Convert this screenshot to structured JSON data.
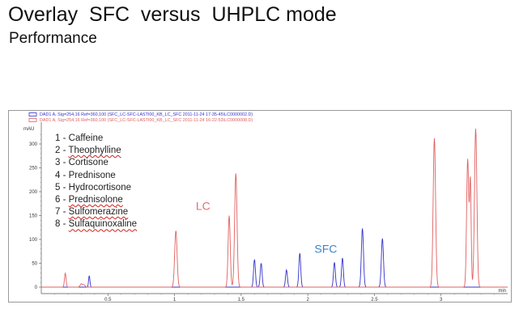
{
  "slide": {
    "title": "Overlay  SFC  versus  UHPLC mode",
    "subtitle": "Performance"
  },
  "compounds": [
    {
      "number": "1",
      "name": "Caffeine",
      "flagged": false
    },
    {
      "number": "2",
      "name": "Theophylline",
      "flagged": true
    },
    {
      "number": "3",
      "name": "Cortisone",
      "flagged": false
    },
    {
      "number": "4",
      "name": "Prednisone",
      "flagged": false
    },
    {
      "number": "5",
      "name": "Hydrocortisone",
      "flagged": false
    },
    {
      "number": "6",
      "name": "Prednisolone",
      "flagged": true
    },
    {
      "number": "7",
      "name": "Sulfomerazine",
      "flagged": true
    },
    {
      "number": "8",
      "name": "Sulfaquinoxaline",
      "flagged": true
    }
  ],
  "chart_data": {
    "type": "line",
    "ylabel": "mAU",
    "xlabel": "min",
    "xlim": [
      0,
      3.5
    ],
    "ylim": [
      -10,
      350
    ],
    "x_ticks": [
      0.5,
      1,
      1.5,
      2,
      2.5,
      3
    ],
    "x_tick_labels": [
      "0.5",
      "1",
      "1.5",
      "2",
      "2.5",
      "3"
    ],
    "y_ticks": [
      0,
      50,
      100,
      150,
      200,
      250,
      300
    ],
    "y_tick_labels": [
      "0",
      "50",
      "100",
      "150",
      "200",
      "250",
      "300"
    ],
    "legend_entries": [
      "DAD1 A, Sig=254,16 Ref=360,100 (SFC_LC-SFC-LASTI00_KB_LC_SFC 2011-11-24 17-35-45\\LC0000002.D)",
      "DAD1 A, Sig=254,16 Ref=360,100 (SFC_LC-SFC-LASTI00_KB_LC_SFC 2011-11-24 16-22-53\\LC0000008.D)"
    ],
    "series": [
      {
        "name": "SFC",
        "color": "#3333cc",
        "baseline": 0,
        "peaks": [
          {
            "t": 0.36,
            "h": 24,
            "w": 0.005
          },
          {
            "t": 1.6,
            "h": 58,
            "w": 0.007
          },
          {
            "t": 1.65,
            "h": 50,
            "w": 0.007
          },
          {
            "t": 1.84,
            "h": 36,
            "w": 0.007
          },
          {
            "t": 1.94,
            "h": 71,
            "w": 0.007
          },
          {
            "t": 2.2,
            "h": 52,
            "w": 0.007
          },
          {
            "t": 2.26,
            "h": 61,
            "w": 0.007
          },
          {
            "t": 2.41,
            "h": 123,
            "w": 0.008
          },
          {
            "t": 2.56,
            "h": 102,
            "w": 0.008
          }
        ]
      },
      {
        "name": "LC",
        "color": "#e06060",
        "baseline": 0,
        "peaks": [
          {
            "t": 0.18,
            "h": 29,
            "w": 0.006
          },
          {
            "t": 0.3,
            "h": 7,
            "w": 0.008
          },
          {
            "t": 0.32,
            "h": 5,
            "w": 0.008
          },
          {
            "t": 1.01,
            "h": 118,
            "w": 0.009
          },
          {
            "t": 1.41,
            "h": 150,
            "w": 0.008
          },
          {
            "t": 1.46,
            "h": 238,
            "w": 0.009
          },
          {
            "t": 2.95,
            "h": 312,
            "w": 0.009
          },
          {
            "t": 3.2,
            "h": 268,
            "w": 0.008
          },
          {
            "t": 3.22,
            "h": 220,
            "w": 0.006
          },
          {
            "t": 3.26,
            "h": 332,
            "w": 0.009
          }
        ]
      }
    ],
    "annotations": [
      {
        "text": "LC",
        "color": "#e07070",
        "x": 1.16,
        "y": 162
      },
      {
        "text": "SFC",
        "color": "#3a86c8",
        "x": 2.05,
        "y": 72
      }
    ]
  }
}
